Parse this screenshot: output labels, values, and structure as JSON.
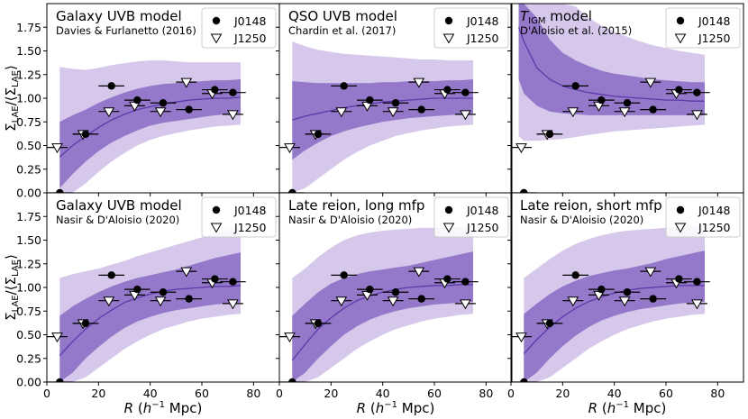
{
  "colors": {
    "band_outer": "#d5c8ea",
    "band_inner": "#9478c9",
    "model_line": "#5a3aa8",
    "marker_filled": "#000000",
    "marker_open": "#ffffff"
  },
  "axes": {
    "xlabel_prefix": "R (h",
    "xlabel_exp": "−1",
    "xlabel_suffix": " Mpc)",
    "ylabel_main": "Σ",
    "ylabel_sub": "LAE",
    "ylabel_mid": "/⟨Σ",
    "ylabel_end": "⟩",
    "xlim": [
      0,
      90
    ],
    "ylim": [
      0,
      2.0
    ],
    "xticks": [
      0,
      20,
      40,
      60,
      80
    ],
    "xtick_labels": [
      "0",
      "20",
      "40",
      "60",
      "80"
    ],
    "yticks": [
      0,
      0.25,
      0.5,
      0.75,
      1.0,
      1.25,
      1.5,
      1.75
    ],
    "ytick_labels": [
      "0.00",
      "0.25",
      "0.50",
      "0.75",
      "1.00",
      "1.25",
      "1.50",
      "1.75"
    ]
  },
  "legend": {
    "j0148": "J0148",
    "j1250": "J1250"
  },
  "chart_data": {
    "type": "scatter",
    "layout": "2x3 grid, shared axes",
    "observations": {
      "J0148": {
        "marker": "filled circle",
        "x": [
          5,
          15,
          25,
          35,
          45,
          55,
          65,
          72
        ],
        "y": [
          0.0,
          0.62,
          1.13,
          0.98,
          0.95,
          0.88,
          1.09,
          1.06
        ],
        "xerr": [
          5,
          5,
          5,
          5,
          5,
          5,
          5,
          5
        ]
      },
      "J1250": {
        "marker": "open down-triangle",
        "x": [
          4,
          14,
          24,
          34,
          44,
          54,
          64,
          72
        ],
        "y": [
          0.48,
          0.62,
          0.86,
          0.92,
          0.86,
          1.17,
          1.05,
          0.83
        ],
        "xerr": [
          4,
          4,
          4,
          4,
          4,
          4,
          4,
          4
        ]
      }
    },
    "panels": [
      {
        "title": "Galaxy UVB model",
        "subtitle": "Davies & Furlanetto (2016)",
        "x": [
          5,
          10,
          15,
          20,
          25,
          30,
          35,
          40,
          45,
          50,
          55,
          60,
          65,
          70,
          75
        ],
        "median": [
          0.38,
          0.5,
          0.6,
          0.69,
          0.77,
          0.83,
          0.88,
          0.91,
          0.94,
          0.96,
          0.98,
          0.99,
          1.0,
          1.0,
          1.01
        ],
        "inner_low": [
          0.05,
          0.2,
          0.33,
          0.44,
          0.53,
          0.6,
          0.66,
          0.71,
          0.74,
          0.76,
          0.78,
          0.8,
          0.82,
          0.83,
          0.84
        ],
        "inner_high": [
          0.75,
          0.82,
          0.88,
          0.95,
          1.01,
          1.06,
          1.1,
          1.13,
          1.15,
          1.16,
          1.17,
          1.18,
          1.19,
          1.19,
          1.2
        ],
        "outer_low": [
          0.0,
          0.0,
          0.1,
          0.22,
          0.33,
          0.42,
          0.5,
          0.56,
          0.6,
          0.63,
          0.66,
          0.68,
          0.7,
          0.71,
          0.72
        ],
        "outer_high": [
          1.33,
          1.31,
          1.3,
          1.32,
          1.35,
          1.37,
          1.39,
          1.4,
          1.4,
          1.39,
          1.38,
          1.38,
          1.38,
          1.38,
          1.38
        ]
      },
      {
        "title": "QSO UVB model",
        "subtitle": "Chardin et al. (2017)",
        "x": [
          5,
          10,
          15,
          20,
          25,
          30,
          35,
          40,
          45,
          50,
          55,
          60,
          65,
          70,
          75
        ],
        "median": [
          0.77,
          0.81,
          0.84,
          0.87,
          0.9,
          0.92,
          0.94,
          0.96,
          0.97,
          0.98,
          0.99,
          1.0,
          1.0,
          1.0,
          1.0
        ],
        "inner_low": [
          0.35,
          0.45,
          0.53,
          0.6,
          0.65,
          0.69,
          0.72,
          0.75,
          0.77,
          0.79,
          0.8,
          0.81,
          0.82,
          0.83,
          0.84
        ],
        "inner_high": [
          1.18,
          1.17,
          1.16,
          1.16,
          1.16,
          1.16,
          1.16,
          1.17,
          1.17,
          1.18,
          1.18,
          1.18,
          1.19,
          1.19,
          1.2
        ],
        "outer_low": [
          0.0,
          0.05,
          0.15,
          0.25,
          0.35,
          0.43,
          0.5,
          0.55,
          0.6,
          0.63,
          0.66,
          0.68,
          0.7,
          0.71,
          0.72
        ],
        "outer_high": [
          1.6,
          1.55,
          1.51,
          1.49,
          1.47,
          1.46,
          1.45,
          1.44,
          1.43,
          1.42,
          1.41,
          1.41,
          1.4,
          1.4,
          1.4
        ]
      },
      {
        "title_prefix": "T",
        "title_sub": "IGM",
        "title": " model",
        "subtitle": "D'Aloisio et al. (2015)",
        "x": [
          3,
          5,
          10,
          15,
          20,
          25,
          30,
          35,
          40,
          45,
          50,
          55,
          60,
          65,
          70,
          75
        ],
        "median": [
          1.75,
          1.6,
          1.32,
          1.2,
          1.13,
          1.09,
          1.06,
          1.04,
          1.02,
          1.01,
          1.0,
          0.99,
          0.98,
          0.98,
          0.97,
          0.97
        ],
        "inner_low": [
          1.2,
          1.05,
          0.92,
          0.86,
          0.84,
          0.83,
          0.82,
          0.82,
          0.82,
          0.82,
          0.82,
          0.82,
          0.82,
          0.82,
          0.82,
          0.82
        ],
        "inner_high": [
          2.0,
          2.0,
          1.85,
          1.62,
          1.48,
          1.4,
          1.34,
          1.29,
          1.26,
          1.24,
          1.22,
          1.2,
          1.19,
          1.18,
          1.17,
          1.17
        ],
        "outer_low": [
          0.6,
          0.55,
          0.55,
          0.56,
          0.57,
          0.59,
          0.61,
          0.63,
          0.65,
          0.66,
          0.67,
          0.68,
          0.69,
          0.7,
          0.71,
          0.72
        ],
        "outer_high": [
          2.0,
          2.0,
          2.0,
          2.0,
          2.0,
          1.97,
          1.85,
          1.77,
          1.7,
          1.65,
          1.6,
          1.56,
          1.53,
          1.5,
          1.48,
          1.46
        ]
      },
      {
        "title": "Galaxy UVB model",
        "subtitle": "Nasir & D'Aloisio (2020)",
        "x": [
          5,
          10,
          15,
          20,
          25,
          30,
          35,
          40,
          45,
          50,
          55,
          60,
          65,
          70,
          75
        ],
        "median": [
          0.28,
          0.43,
          0.56,
          0.67,
          0.76,
          0.84,
          0.89,
          0.93,
          0.96,
          0.98,
          0.99,
          1.0,
          1.01,
          1.01,
          1.02
        ],
        "inner_low": [
          0.0,
          0.1,
          0.25,
          0.37,
          0.48,
          0.57,
          0.64,
          0.69,
          0.73,
          0.76,
          0.78,
          0.8,
          0.82,
          0.83,
          0.84
        ],
        "inner_high": [
          0.7,
          0.8,
          0.88,
          0.95,
          1.01,
          1.06,
          1.1,
          1.13,
          1.16,
          1.19,
          1.23,
          1.27,
          1.31,
          1.34,
          1.37
        ],
        "outer_low": [
          0.0,
          0.0,
          0.05,
          0.15,
          0.25,
          0.35,
          0.43,
          0.5,
          0.56,
          0.6,
          0.64,
          0.67,
          0.69,
          0.71,
          0.72
        ],
        "outer_high": [
          1.1,
          1.14,
          1.17,
          1.2,
          1.24,
          1.28,
          1.33,
          1.37,
          1.41,
          1.45,
          1.49,
          1.53,
          1.57,
          1.61,
          1.65
        ]
      },
      {
        "title": "Late reion, long mfp",
        "subtitle": "Nasir & D'Aloisio (2020)",
        "x": [
          5,
          10,
          15,
          20,
          25,
          30,
          35,
          40,
          45,
          50,
          55,
          60,
          65,
          70,
          75
        ],
        "median": [
          0.23,
          0.4,
          0.56,
          0.68,
          0.78,
          0.86,
          0.91,
          0.95,
          0.98,
          1.0,
          1.01,
          1.02,
          1.02,
          1.03,
          1.03
        ],
        "inner_low": [
          0.0,
          0.1,
          0.25,
          0.38,
          0.5,
          0.59,
          0.66,
          0.71,
          0.75,
          0.78,
          0.8,
          0.82,
          0.83,
          0.84,
          0.85
        ],
        "inner_high": [
          0.7,
          0.83,
          0.95,
          1.04,
          1.1,
          1.14,
          1.17,
          1.19,
          1.21,
          1.23,
          1.26,
          1.29,
          1.32,
          1.35,
          1.38
        ],
        "outer_low": [
          0.0,
          0.0,
          0.05,
          0.15,
          0.25,
          0.35,
          0.43,
          0.5,
          0.56,
          0.6,
          0.64,
          0.67,
          0.69,
          0.71,
          0.72
        ],
        "outer_high": [
          1.1,
          1.2,
          1.32,
          1.42,
          1.5,
          1.55,
          1.58,
          1.6,
          1.61,
          1.62,
          1.63,
          1.63,
          1.64,
          1.64,
          1.65
        ]
      },
      {
        "title": "Late reion, short mfp",
        "subtitle": "Nasir & D'Aloisio (2020)",
        "x": [
          5,
          10,
          15,
          20,
          25,
          30,
          35,
          40,
          45,
          50,
          55,
          60,
          65,
          70,
          75
        ],
        "median": [
          0.3,
          0.45,
          0.58,
          0.69,
          0.78,
          0.85,
          0.9,
          0.94,
          0.97,
          0.99,
          1.0,
          1.01,
          1.02,
          1.02,
          1.02
        ],
        "inner_low": [
          0.0,
          0.1,
          0.25,
          0.38,
          0.49,
          0.58,
          0.65,
          0.7,
          0.74,
          0.77,
          0.79,
          0.81,
          0.83,
          0.84,
          0.85
        ],
        "inner_high": [
          0.72,
          0.83,
          0.93,
          1.01,
          1.07,
          1.12,
          1.15,
          1.18,
          1.2,
          1.23,
          1.26,
          1.3,
          1.33,
          1.36,
          1.39
        ],
        "outer_low": [
          0.0,
          0.0,
          0.05,
          0.15,
          0.25,
          0.35,
          0.43,
          0.5,
          0.56,
          0.6,
          0.64,
          0.67,
          0.69,
          0.71,
          0.72
        ],
        "outer_high": [
          1.1,
          1.2,
          1.3,
          1.39,
          1.46,
          1.51,
          1.55,
          1.58,
          1.6,
          1.61,
          1.62,
          1.63,
          1.64,
          1.64,
          1.65
        ]
      }
    ]
  }
}
